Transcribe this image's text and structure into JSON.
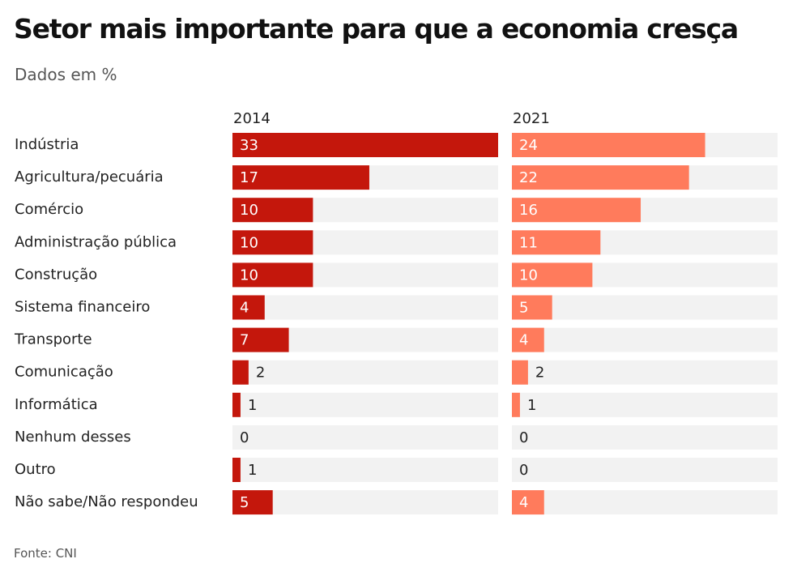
{
  "title": "Setor mais importante para que a economia cresça",
  "subtitle": "Dados em %",
  "source": "Fonte: CNI",
  "colors": {
    "track": "#f2f2f2",
    "label_inside": "#ffffff",
    "label_outside": "#222222"
  },
  "chart_data": {
    "type": "bar",
    "orientation": "horizontal",
    "categories": [
      "Indústria",
      "Agricultura/pecuária",
      "Comércio",
      "Administração pública",
      "Construção",
      "Sistema financeiro",
      "Transporte",
      "Comunicação",
      "Informática",
      "Nenhum desses",
      "Outro",
      "Não sabe/Não respondeu"
    ],
    "series": [
      {
        "name": "2014",
        "color": "#c4170c",
        "values": [
          33,
          17,
          10,
          10,
          10,
          4,
          7,
          2,
          1,
          0,
          1,
          5
        ]
      },
      {
        "name": "2021",
        "color": "#ff7b5c",
        "values": [
          24,
          22,
          16,
          11,
          10,
          5,
          4,
          2,
          1,
          0,
          0,
          4
        ]
      }
    ],
    "xlim": [
      0,
      33
    ],
    "title": "Setor mais importante para que a economia cresça",
    "subtitle": "Dados em %",
    "xlabel": "",
    "ylabel": "",
    "grid": false,
    "legend": "column headers"
  }
}
